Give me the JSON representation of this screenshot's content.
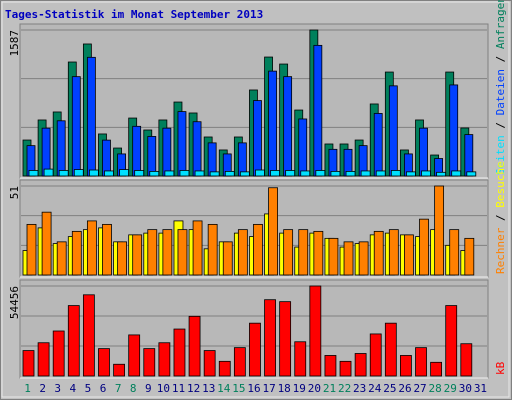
{
  "chart_data": [
    {
      "type": "bar",
      "title": "Tages-Statistik im Monat September 2013",
      "ylim": [
        0,
        1587
      ],
      "yticks": [
        1587
      ],
      "series": [
        {
          "name": "Anfragen",
          "color": "#00805c",
          "values": [
            391,
            609,
            696,
            1239,
            1435,
            457,
            304,
            630,
            500,
            609,
            804,
            685,
            424,
            283,
            424,
            935,
            1293,
            1217,
            717,
            1587,
            348,
            348,
            391,
            783,
            1130,
            283,
            609,
            228,
            1130,
            522,
            null
          ]
        },
        {
          "name": "Dateien",
          "color": "#0040ff",
          "values": [
            330,
            520,
            600,
            1080,
            1290,
            390,
            240,
            540,
            430,
            520,
            700,
            590,
            360,
            240,
            360,
            820,
            1140,
            1080,
            620,
            1420,
            290,
            290,
            330,
            680,
            980,
            240,
            520,
            190,
            990,
            450,
            null
          ]
        },
        {
          "name": "Seiten",
          "color": "#00e0ff",
          "values": [
            60,
            75,
            60,
            70,
            65,
            55,
            70,
            60,
            50,
            55,
            60,
            55,
            45,
            50,
            45,
            65,
            60,
            60,
            55,
            60,
            50,
            50,
            55,
            55,
            60,
            45,
            55,
            40,
            55,
            45,
            null
          ]
        }
      ]
    },
    {
      "type": "bar",
      "ylim": [
        0,
        51
      ],
      "yticks": [
        51
      ],
      "series": [
        {
          "name": "Besuche",
          "color": "#ffff00",
          "values": [
            14,
            27,
            18,
            22,
            26,
            27,
            19,
            23,
            24,
            24,
            31,
            26,
            15,
            19,
            24,
            22,
            35,
            24,
            16,
            24,
            21,
            16,
            18,
            23,
            24,
            23,
            22,
            26,
            17,
            14,
            null
          ]
        },
        {
          "name": "Rechner",
          "color": "#ff8000",
          "values": [
            29,
            36,
            19,
            25,
            31,
            29,
            19,
            23,
            26,
            26,
            26,
            31,
            29,
            19,
            26,
            29,
            50,
            26,
            26,
            25,
            21,
            19,
            19,
            25,
            26,
            23,
            32,
            51,
            26,
            21,
            null
          ]
        }
      ]
    },
    {
      "type": "bar",
      "ylim": [
        0,
        54456
      ],
      "yticks": [
        54456
      ],
      "categories": [
        "1",
        "2",
        "3",
        "4",
        "5",
        "6",
        "7",
        "8",
        "9",
        "10",
        "11",
        "12",
        "13",
        "14",
        "15",
        "16",
        "17",
        "18",
        "19",
        "20",
        "21",
        "22",
        "23",
        "24",
        "25",
        "26",
        "27",
        "28",
        "29",
        "30",
        "31"
      ],
      "category_colors": [
        "#00805c",
        "#000080",
        "#000080",
        "#000080",
        "#000080",
        "#000080",
        "#00805c",
        "#00805c",
        "#000080",
        "#000080",
        "#000080",
        "#000080",
        "#000080",
        "#00805c",
        "#00805c",
        "#000080",
        "#000080",
        "#000080",
        "#000080",
        "#000080",
        "#00805c",
        "#00805c",
        "#000080",
        "#000080",
        "#000080",
        "#000080",
        "#000080",
        "#00805c",
        "#00805c",
        "#000080",
        "#000080"
      ],
      "series": [
        {
          "name": "kB",
          "color": "#ff0000",
          "values": [
            15390,
            20125,
            27228,
            42617,
            49129,
            16573,
            7103,
            24860,
            16573,
            20125,
            28412,
            36106,
            15390,
            8879,
            17165,
            31963,
            46169,
            44985,
            20717,
            54456,
            12430,
            8879,
            13614,
            25452,
            31963,
            12430,
            17165,
            8287,
            42617,
            19533,
            null
          ]
        }
      ]
    }
  ]
}
